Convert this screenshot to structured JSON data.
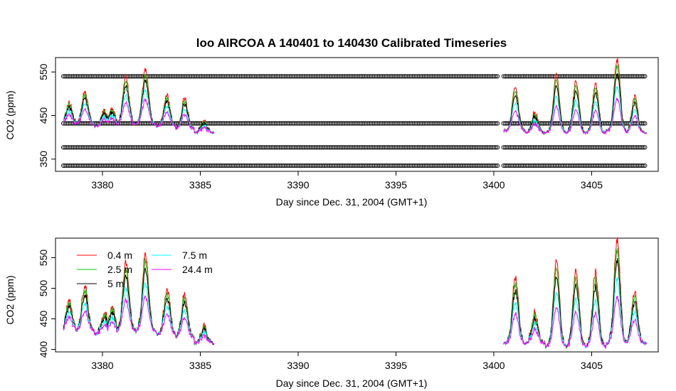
{
  "chart_data": [
    {
      "type": "scatter",
      "title": "loo   AIRCOA  A    140401  to  140430   Calibrated Timeseries",
      "xlabel": "Day since Dec. 31, 2004 (GMT+1)",
      "ylabel": "CO2 (ppm)",
      "xlim": [
        3377.6,
        3408.4
      ],
      "ylim": [
        322,
        583
      ],
      "x_ticks": [
        3380,
        3385,
        3390,
        3395,
        3400,
        3405
      ],
      "y_ticks": [
        350,
        450,
        550
      ],
      "grid": false,
      "point_rows": [
        {
          "name": "",
          "y": 540,
          "marker": "o"
        },
        {
          "name": "",
          "y": 432,
          "marker": "o"
        },
        {
          "name": "",
          "y": 377,
          "marker": "o"
        },
        {
          "name": "",
          "y": 335,
          "marker": "o"
        }
      ],
      "segments": [
        {
          "x_start": 3378.0,
          "x_end": 3385.7
        },
        {
          "x_start": 3400.5,
          "x_end": 3407.8
        }
      ],
      "point_rows_span": [
        [
          3378.0,
          3400.2
        ],
        [
          3400.5,
          3407.8
        ]
      ],
      "series": [
        {
          "name": "0.4 m",
          "color": "#ff0000"
        },
        {
          "name": "2.5 m",
          "color": "#00cd00"
        },
        {
          "name": "5 m",
          "color": "#000000"
        },
        {
          "name": "7.5 m",
          "color": "#00ffff"
        },
        {
          "name": "24.4 m",
          "color": "#ff00ff"
        }
      ],
      "day_peaks": [
        {
          "x": 3378.3,
          "high": 478,
          "base": 430
        },
        {
          "x": 3379.1,
          "high": 505,
          "base": 430
        },
        {
          "x": 3380.1,
          "high": 460,
          "base": 425
        },
        {
          "x": 3380.5,
          "high": 465,
          "base": 425
        },
        {
          "x": 3381.2,
          "high": 540,
          "base": 430
        },
        {
          "x": 3382.2,
          "high": 555,
          "base": 430
        },
        {
          "x": 3383.3,
          "high": 495,
          "base": 425
        },
        {
          "x": 3384.2,
          "high": 488,
          "base": 420
        },
        {
          "x": 3385.2,
          "high": 435,
          "base": 410
        },
        {
          "x": 3401.1,
          "high": 515,
          "base": 415
        },
        {
          "x": 3402.1,
          "high": 458,
          "base": 410
        },
        {
          "x": 3403.2,
          "high": 545,
          "base": 410
        },
        {
          "x": 3404.2,
          "high": 528,
          "base": 410
        },
        {
          "x": 3405.2,
          "high": 522,
          "base": 410
        },
        {
          "x": 3406.3,
          "high": 578,
          "base": 415
        },
        {
          "x": 3407.2,
          "high": 492,
          "base": 410
        }
      ]
    },
    {
      "type": "line",
      "title": "",
      "xlabel": "Day since Dec. 31, 2004 (GMT+1)",
      "ylabel": "CO2 (ppm)",
      "xlim": [
        3377.6,
        3408.4
      ],
      "ylim": [
        396,
        582
      ],
      "x_ticks": [
        3380,
        3385,
        3390,
        3395,
        3400,
        3405
      ],
      "y_ticks": [
        400,
        450,
        500,
        550
      ],
      "grid": false,
      "legend_placement": "top-left",
      "series": [
        {
          "name": "0.4 m",
          "color": "#ff0000"
        },
        {
          "name": "2.5 m",
          "color": "#00cd00"
        },
        {
          "name": "5 m",
          "color": "#000000"
        },
        {
          "name": "7.5 m",
          "color": "#00ffff"
        },
        {
          "name": "24.4 m",
          "color": "#ff00ff"
        }
      ],
      "segments": [
        {
          "x_start": 3378.0,
          "x_end": 3385.7
        },
        {
          "x_start": 3400.5,
          "x_end": 3407.8
        }
      ],
      "day_peaks": [
        {
          "x": 3378.3,
          "high": 480,
          "base": 430
        },
        {
          "x": 3379.1,
          "high": 505,
          "base": 430
        },
        {
          "x": 3380.1,
          "high": 462,
          "base": 425
        },
        {
          "x": 3380.5,
          "high": 470,
          "base": 425
        },
        {
          "x": 3381.2,
          "high": 542,
          "base": 430
        },
        {
          "x": 3382.2,
          "high": 555,
          "base": 430
        },
        {
          "x": 3383.3,
          "high": 498,
          "base": 425
        },
        {
          "x": 3384.2,
          "high": 490,
          "base": 420
        },
        {
          "x": 3385.2,
          "high": 437,
          "base": 410
        },
        {
          "x": 3401.1,
          "high": 518,
          "base": 410
        },
        {
          "x": 3402.1,
          "high": 460,
          "base": 410
        },
        {
          "x": 3403.2,
          "high": 547,
          "base": 405
        },
        {
          "x": 3404.2,
          "high": 530,
          "base": 405
        },
        {
          "x": 3405.2,
          "high": 525,
          "base": 405
        },
        {
          "x": 3406.3,
          "high": 580,
          "base": 410
        },
        {
          "x": 3407.2,
          "high": 495,
          "base": 410
        }
      ]
    }
  ]
}
